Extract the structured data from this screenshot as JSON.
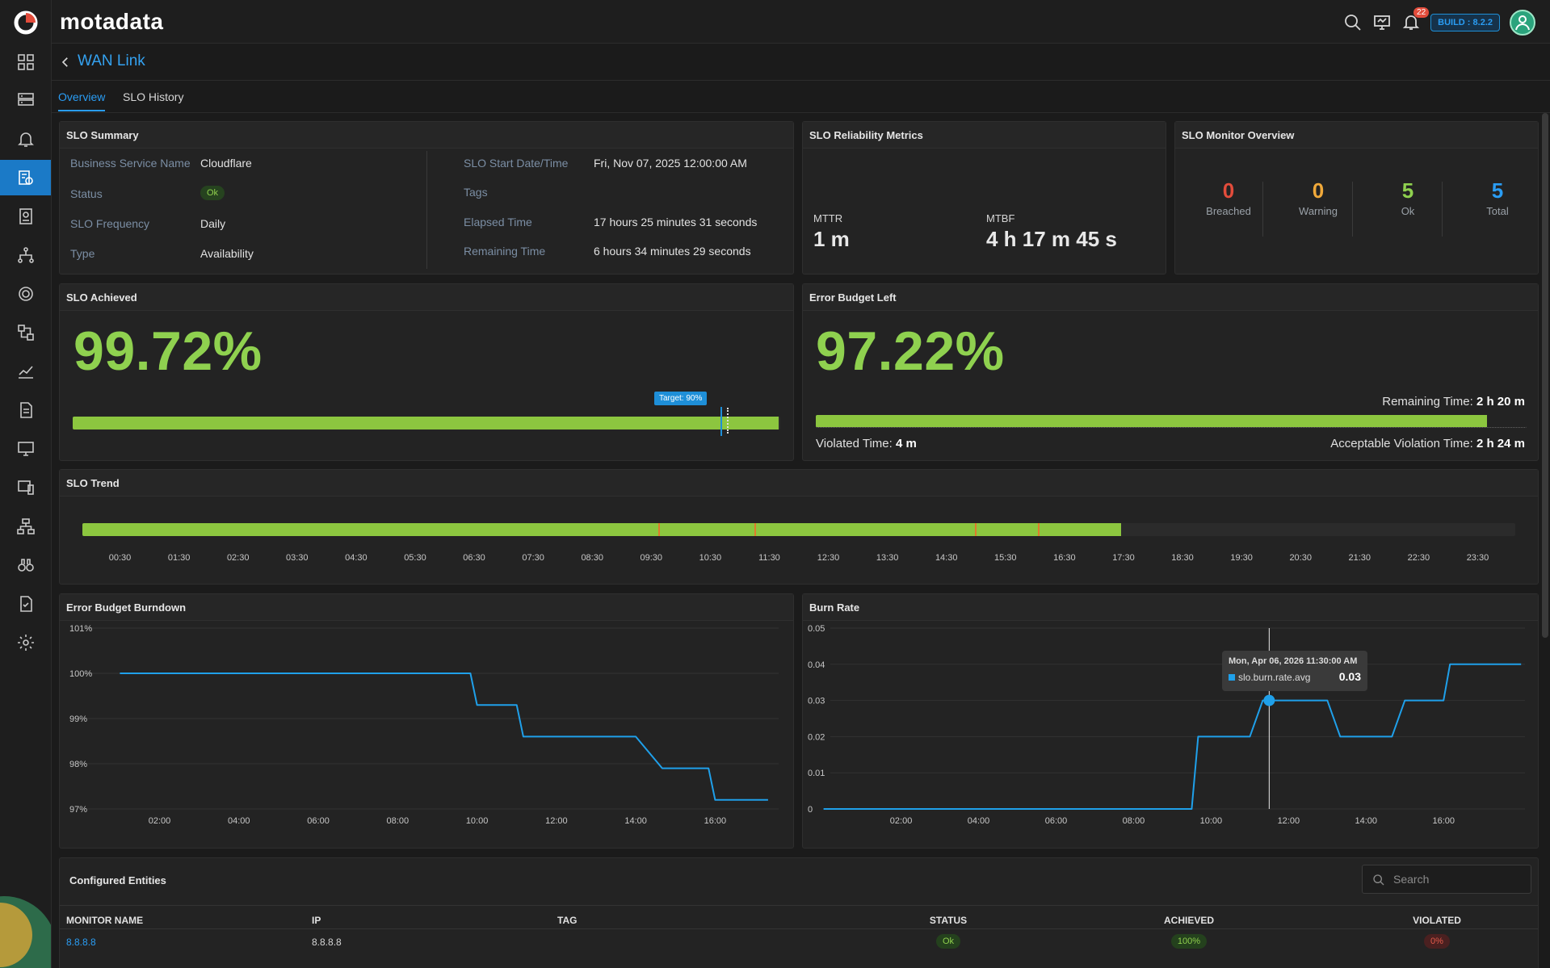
{
  "app": {
    "brand": "motadata",
    "build": "BUILD : 8.2.2",
    "notifications": "22"
  },
  "page": {
    "title": "WAN Link",
    "tabs": [
      "Overview",
      "SLO History"
    ]
  },
  "slo_summary": {
    "title": "SLO Summary",
    "left": [
      {
        "label": "Business Service Name",
        "value": "Cloudflare"
      },
      {
        "label": "Status",
        "value": "Ok"
      },
      {
        "label": "SLO Frequency",
        "value": "Daily"
      },
      {
        "label": "Type",
        "value": "Availability"
      }
    ],
    "right": [
      {
        "label": "SLO Start Date/Time",
        "value": "Fri, Nov 07, 2025 12:00:00 AM"
      },
      {
        "label": "Tags",
        "value": ""
      },
      {
        "label": "Elapsed Time",
        "value": "17 hours 25 minutes 31 seconds"
      },
      {
        "label": "Remaining Time",
        "value": "6 hours 34 minutes 29 seconds"
      }
    ]
  },
  "reliability": {
    "title": "SLO Reliability Metrics",
    "mttr_label": "MTTR",
    "mttr_value": "1 m",
    "mtbf_label": "MTBF",
    "mtbf_value": "4 h 17 m 45 s"
  },
  "monitor_overview": {
    "title": "SLO Monitor Overview",
    "items": [
      {
        "count": "0",
        "label": "Breached",
        "color": "#e24c3b"
      },
      {
        "count": "0",
        "label": "Warning",
        "color": "#f0a93a"
      },
      {
        "count": "5",
        "label": "Ok",
        "color": "#8fd14f"
      },
      {
        "count": "5",
        "label": "Total",
        "color": "#2a9df4"
      }
    ]
  },
  "slo_achieved": {
    "title": "SLO Achieved",
    "value": "99.72%",
    "fill": 0.9972,
    "target_label": "Target: 90%",
    "target": 0.9
  },
  "error_budget_left": {
    "title": "Error Budget Left",
    "value": "97.22%",
    "fill": 0.9722,
    "remaining_label": "Remaining Time:",
    "remaining_value": "2 h 20 m",
    "violated_label": "Violated Time:",
    "violated_value": "4 m",
    "acceptable_label": "Acceptable Violation Time:",
    "acceptable_value": "2 h 24 m"
  },
  "slo_trend": {
    "title": "SLO Trend",
    "ticks": [
      "00:30",
      "01:30",
      "02:30",
      "03:30",
      "04:30",
      "05:30",
      "06:30",
      "07:30",
      "08:30",
      "09:30",
      "10:30",
      "11:30",
      "12:30",
      "13:30",
      "14:30",
      "15:30",
      "16:30",
      "17:30",
      "18:30",
      "19:30",
      "20:30",
      "21:30",
      "22:30",
      "23:30"
    ],
    "filled_until_hour": 17.4,
    "violation_hours": [
      9.65,
      11.25,
      14.95,
      16.0
    ]
  },
  "chart_data": [
    {
      "type": "line",
      "title": "Error Budget Burndown",
      "x": [
        "01:00",
        "02:00",
        "03:00",
        "04:00",
        "05:00",
        "06:00",
        "07:00",
        "08:00",
        "09:00",
        "09:50",
        "10:00",
        "11:00",
        "11:10",
        "12:00",
        "13:00",
        "14:00",
        "14:40",
        "15:00",
        "15:50",
        "16:00",
        "17:00",
        "17:20"
      ],
      "series": [
        {
          "values": [
            100,
            100,
            100,
            100,
            100,
            100,
            100,
            100,
            100,
            100,
            99.3,
            99.3,
            98.6,
            98.6,
            98.6,
            98.6,
            97.9,
            97.9,
            97.9,
            97.2,
            97.2,
            97.2
          ]
        }
      ],
      "y_ticks": [
        "101%",
        "100%",
        "99%",
        "98%",
        "97%"
      ],
      "x_ticks": [
        "02:00",
        "04:00",
        "06:00",
        "08:00",
        "10:00",
        "12:00",
        "14:00",
        "16:00"
      ],
      "ylim": [
        97,
        101
      ]
    },
    {
      "type": "line",
      "title": "Burn Rate",
      "x": [
        "00:00",
        "02:00",
        "04:00",
        "06:00",
        "08:00",
        "09:30",
        "09:40",
        "11:00",
        "11:20",
        "13:00",
        "13:20",
        "14:40",
        "15:00",
        "16:00",
        "16:10",
        "17:00",
        "18:00"
      ],
      "series": [
        {
          "name": "slo.burn.rate.avg",
          "values": [
            0,
            0,
            0,
            0,
            0,
            0,
            0.02,
            0.02,
            0.03,
            0.03,
            0.02,
            0.02,
            0.03,
            0.03,
            0.04,
            0.04,
            0.04
          ]
        }
      ],
      "y_ticks": [
        "0.05",
        "0.04",
        "0.03",
        "0.02",
        "0.01",
        "0"
      ],
      "x_ticks": [
        "02:00",
        "04:00",
        "06:00",
        "08:00",
        "10:00",
        "12:00",
        "14:00",
        "16:00"
      ],
      "ylim": [
        0,
        0.05
      ],
      "tooltip": {
        "date": "Mon, Apr 06, 2026 11:30:00 AM",
        "series": "slo.burn.rate.avg",
        "value": "0.03"
      }
    }
  ],
  "entities": {
    "title": "Configured Entities",
    "search_placeholder": "Search",
    "columns": [
      "MONITOR NAME",
      "IP",
      "TAG",
      "STATUS",
      "ACHIEVED",
      "VIOLATED"
    ],
    "rows": [
      {
        "name": "8.8.8.8",
        "ip": "8.8.8.8",
        "tag": "",
        "status": "Ok",
        "achieved": "100%",
        "violated": "0%"
      }
    ]
  },
  "colors": {
    "accent": "#2a9df4",
    "good": "#8fd14f",
    "bad": "#e24c3b",
    "warn": "#f0a93a"
  }
}
